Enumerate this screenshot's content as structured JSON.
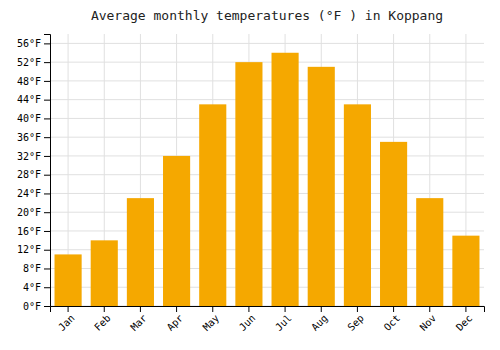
{
  "chart_data": {
    "type": "bar",
    "title": "Average monthly temperatures (°F ) in Koppang",
    "categories": [
      "Jan",
      "Feb",
      "Mar",
      "Apr",
      "May",
      "Jun",
      "Jul",
      "Aug",
      "Sep",
      "Oct",
      "Nov",
      "Dec"
    ],
    "values": [
      11,
      14,
      23,
      32,
      43,
      52,
      54,
      51,
      43,
      35,
      23,
      15
    ],
    "color": "#F5A800",
    "ylim": [
      0,
      58
    ],
    "yticks": [
      {
        "value": 0,
        "label": "0°F"
      },
      {
        "value": 4,
        "label": "4°F"
      },
      {
        "value": 8,
        "label": "8°F"
      },
      {
        "value": 12,
        "label": "12°F"
      },
      {
        "value": 16,
        "label": "16°F"
      },
      {
        "value": 20,
        "label": "20°F"
      },
      {
        "value": 24,
        "label": "24°F"
      },
      {
        "value": 28,
        "label": "28°F"
      },
      {
        "value": 32,
        "label": "32°F"
      },
      {
        "value": 36,
        "label": "36°F"
      },
      {
        "value": 40,
        "label": "40°F"
      },
      {
        "value": 44,
        "label": "44°F"
      },
      {
        "value": 48,
        "label": "48°F"
      },
      {
        "value": 52,
        "label": "52°F"
      },
      {
        "value": 56,
        "label": "56°F"
      }
    ],
    "grid": true
  }
}
